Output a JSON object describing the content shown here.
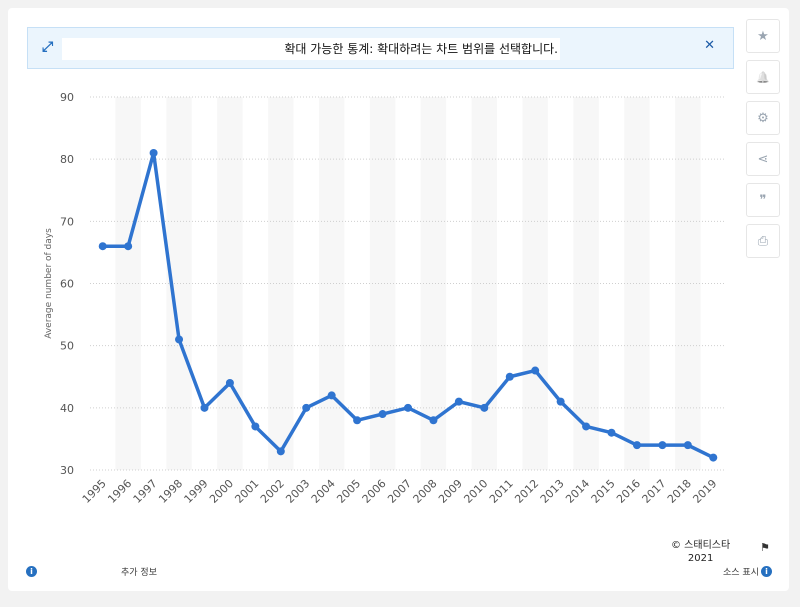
{
  "banner": {
    "message": "확대 가능한 통계: 확대하려는 차트 범위를 선택합니다.",
    "close_label": "✕"
  },
  "toolbar": [
    {
      "name": "star-icon",
      "glyph": "★"
    },
    {
      "name": "bell-icon",
      "glyph": "🔔"
    },
    {
      "name": "gear-icon",
      "glyph": "⚙"
    },
    {
      "name": "share-icon",
      "glyph": "⋖"
    },
    {
      "name": "quote-icon",
      "glyph": "❞"
    },
    {
      "name": "print-icon",
      "glyph": "⎙"
    }
  ],
  "footer": {
    "more_info": "추가 정보",
    "credit_line1": "© 스태티스타",
    "credit_line2": "2021",
    "source_label": "소스 표시"
  },
  "chart_data": {
    "type": "line",
    "title": "",
    "xlabel": "",
    "ylabel": "Average number of days",
    "categories": [
      "1995",
      "1996",
      "1997",
      "1998",
      "1999",
      "2000",
      "2001",
      "2002",
      "2003",
      "2004",
      "2005",
      "2006",
      "2007",
      "2008",
      "2009",
      "2010",
      "2011",
      "2012",
      "2013",
      "2014",
      "2015",
      "2016",
      "2017",
      "2018",
      "2019"
    ],
    "series": [
      {
        "values": [
          66,
          66,
          81,
          51,
          40,
          44,
          37,
          33,
          40,
          42,
          38,
          39,
          40,
          38,
          41,
          40,
          45,
          46,
          41,
          37,
          36,
          34,
          34,
          34,
          32
        ]
      }
    ],
    "ylim": [
      30,
      90
    ],
    "yticks": [
      30,
      40,
      50,
      60,
      70,
      80,
      90
    ],
    "grid": true,
    "line_color": "#2f74d0"
  }
}
